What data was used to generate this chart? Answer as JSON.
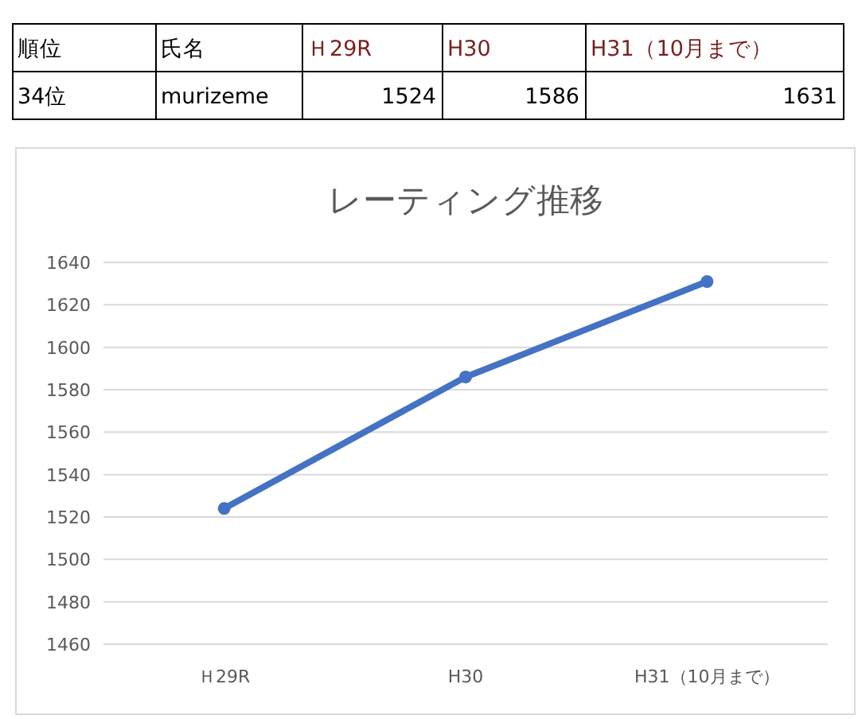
{
  "chart_data": {
    "type": "line",
    "title": "レーティング推移",
    "categories": [
      "Ｈ29R",
      "H30",
      "H31（10月まで）"
    ],
    "series": [
      {
        "color": "#4472c4",
        "values": [
          1524,
          1586,
          1631
        ]
      }
    ],
    "ylim": [
      1460,
      1640
    ],
    "yticks": [
      1460,
      1480,
      1500,
      1520,
      1540,
      1560,
      1580,
      1600,
      1620,
      1640
    ],
    "grid": "y",
    "marker": "circle",
    "annotations": [
      "順位",
      "34位",
      "氏名",
      "murizeme",
      "Ｈ29R",
      "1524",
      "H30",
      "1586",
      "H31（10月まで）",
      "1631"
    ]
  }
}
